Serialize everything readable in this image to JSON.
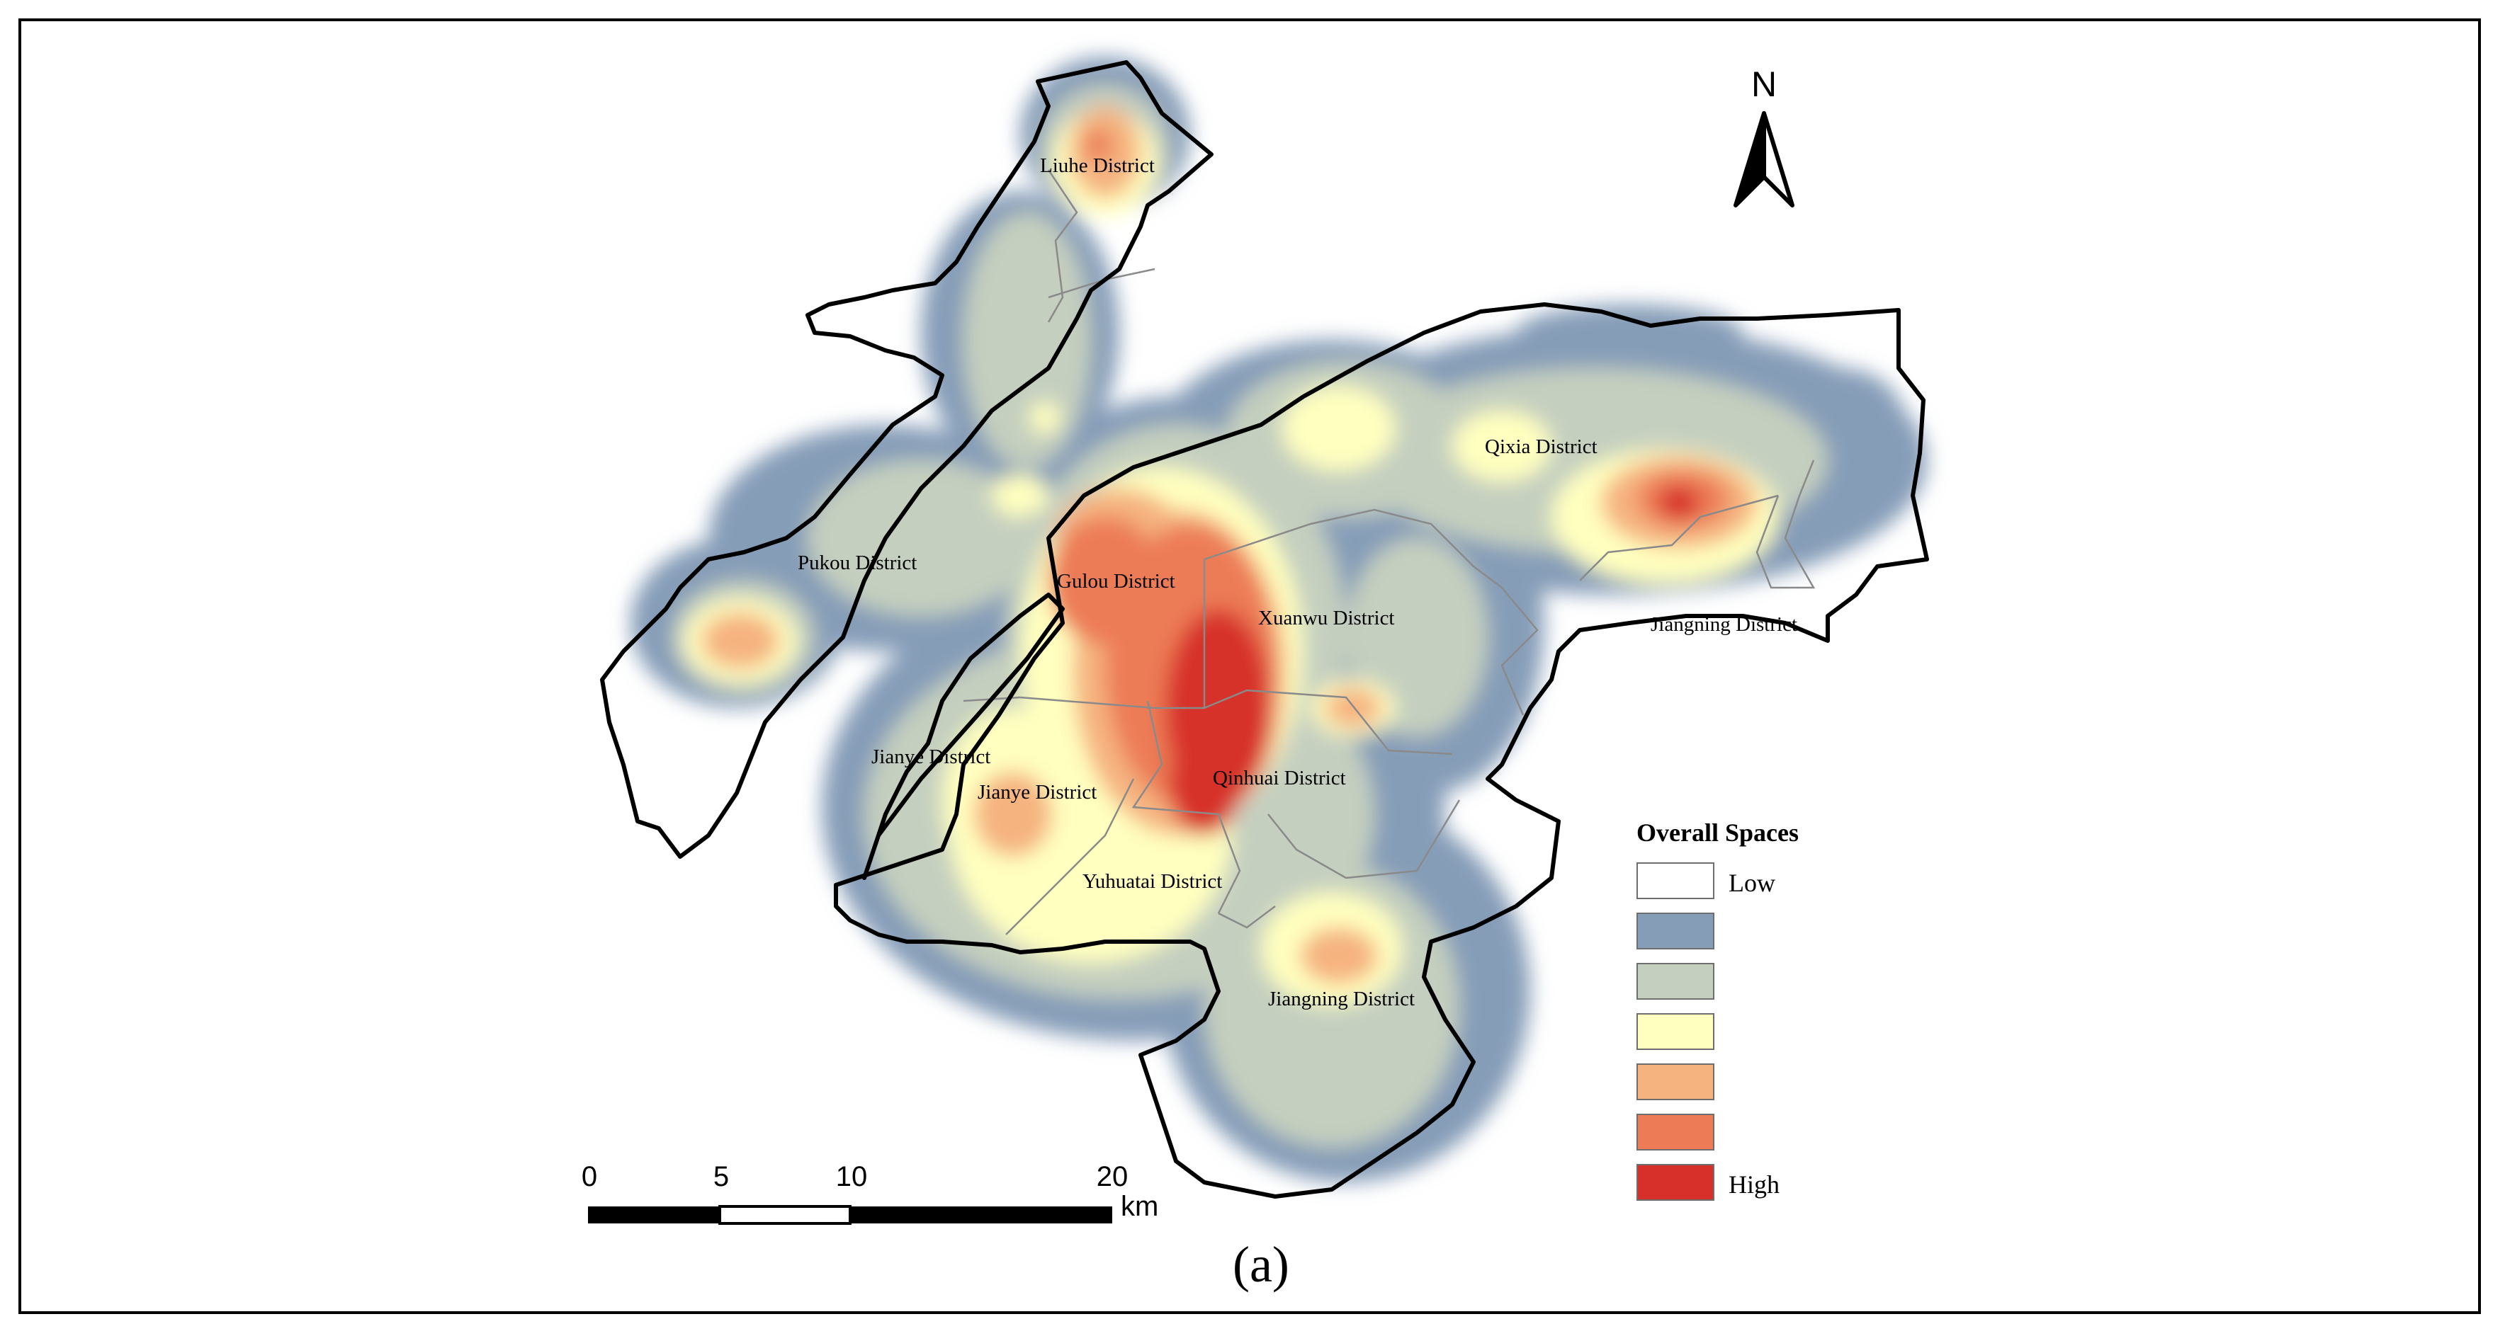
{
  "map": {
    "districts": {
      "liuhe": "Liuhe District",
      "pukou": "Pukou District",
      "gulou": "Gulou District",
      "xuanwu": "Xuanwu District",
      "qixia": "Qixia District",
      "jiangning_east": "Jiangning District",
      "jianye_1": "Jianye District",
      "jianye_2": "Jianye District",
      "qinhuai": "Qinhuai District",
      "yuhuatai": "Yuhuatai District",
      "jiangning_south": "Jiangning District"
    },
    "colors": {
      "low": "#ffffff",
      "c2": "#869db8",
      "c3": "#c5cfbf",
      "c4": "#ffffbf",
      "c5": "#f5b380",
      "c6": "#ec7b56",
      "high": "#d7302a"
    }
  },
  "legend": {
    "title": "Overall Spaces",
    "items": [
      {
        "label": "Low",
        "color": "#ffffff"
      },
      {
        "label": "",
        "color": "#869db8"
      },
      {
        "label": "",
        "color": "#c5cfbf"
      },
      {
        "label": "",
        "color": "#ffffbf"
      },
      {
        "label": "",
        "color": "#f5b380"
      },
      {
        "label": "",
        "color": "#ec7b56"
      },
      {
        "label": "High",
        "color": "#d7302a"
      }
    ]
  },
  "north_arrow": {
    "letter": "N"
  },
  "scale_bar": {
    "ticks": [
      "0",
      "5",
      "10",
      "20"
    ],
    "unit": "km"
  },
  "panel_label": "(a)"
}
